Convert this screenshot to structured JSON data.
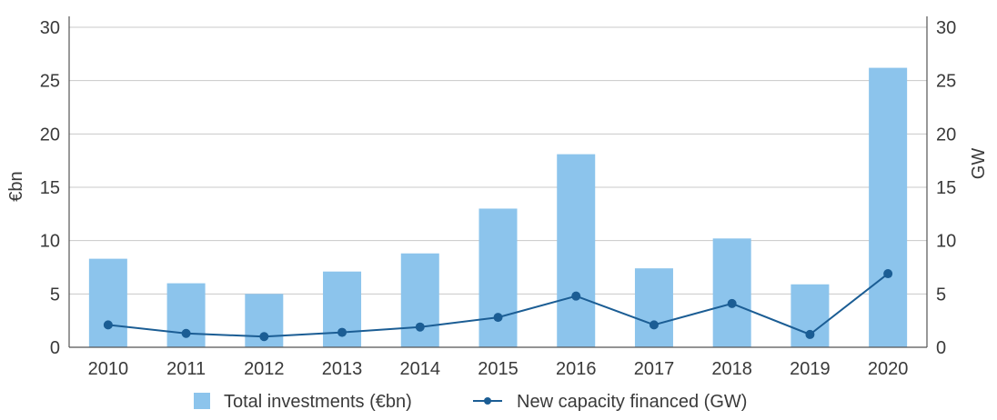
{
  "chart_data": {
    "type": "bar",
    "categories": [
      "2010",
      "2011",
      "2012",
      "2013",
      "2014",
      "2015",
      "2016",
      "2017",
      "2018",
      "2019",
      "2020"
    ],
    "series": [
      {
        "name": "Total investments (€bn)",
        "type": "bar",
        "axis": "left",
        "values": [
          8.3,
          6.0,
          5.0,
          7.1,
          8.8,
          13.0,
          18.1,
          7.4,
          10.2,
          5.9,
          26.2
        ]
      },
      {
        "name": "New capacity financed (GW)",
        "type": "line",
        "axis": "right",
        "values": [
          2.1,
          1.3,
          1.0,
          1.4,
          1.9,
          2.8,
          4.8,
          2.1,
          4.1,
          1.2,
          6.9
        ]
      }
    ],
    "ylabel": "€bn",
    "y2label": "GW",
    "ylim": [
      0,
      30
    ],
    "y2lim": [
      0,
      30
    ],
    "yticks": [
      "0",
      "5",
      "10",
      "15",
      "20",
      "25",
      "30"
    ],
    "y2ticks": [
      "0",
      "5",
      "10",
      "15",
      "20",
      "25",
      "30"
    ],
    "grid": true,
    "legend_position": "bottom",
    "colors": {
      "bar": "#8cc4ec",
      "line": "#1b5d94",
      "grid": "#c8c8c8",
      "axis": "#555555",
      "text": "#3a3a3a"
    }
  }
}
